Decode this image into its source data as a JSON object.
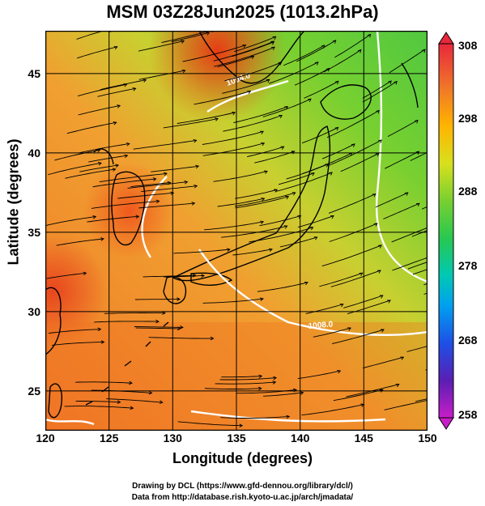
{
  "title": "MSM 03Z28Jun2025 (1013.2hPa)",
  "axes": {
    "xlabel": "Longitude (degrees)",
    "ylabel": "Latitude  (degrees)",
    "xticks": [
      "120",
      "125",
      "130",
      "135",
      "140",
      "145",
      "150"
    ],
    "yticks": [
      "25",
      "30",
      "35",
      "40",
      "45"
    ],
    "xlim": [
      120,
      150
    ],
    "ylim": [
      22.4,
      47.6
    ]
  },
  "colorbar": {
    "ticks": [
      "308",
      "298",
      "288",
      "278",
      "268",
      "258"
    ],
    "range": [
      258,
      308
    ]
  },
  "contour_labels": [
    "1004.0",
    "1008.0"
  ],
  "footer": {
    "line1": "Drawing by DCL (https://www.gfd-dennou.org/library/dcl/)",
    "line2": "Data from http://database.rish.kyoto-u.ac.jp/arch/jmadata/"
  },
  "colors": {
    "warm": "#e8501e",
    "mid": "#ffb400",
    "cool": "#3cc83c",
    "coast": "#000000",
    "isobar": "#ffffff"
  }
}
